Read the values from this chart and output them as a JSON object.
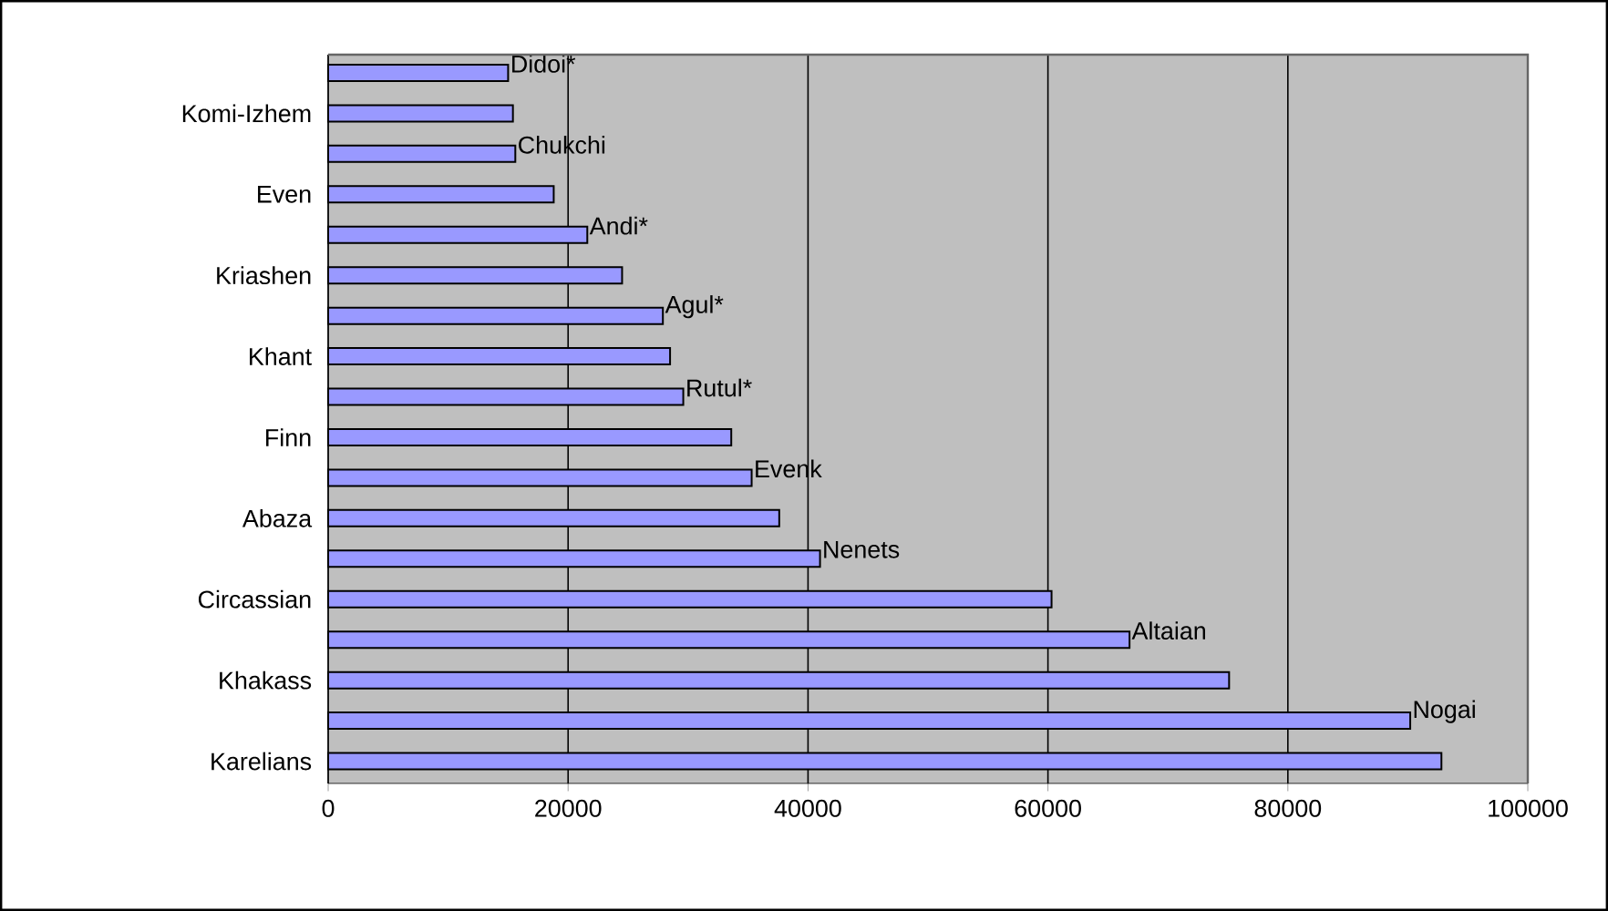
{
  "chart_data": {
    "type": "bar",
    "orientation": "horizontal",
    "categories": [
      "Didoi*",
      "Komi-Izhem",
      "Chukchi",
      "Even",
      "Andi*",
      "Kriashen",
      "Agul*",
      "Khant",
      "Rutul*",
      "Finn",
      "Evenk",
      "Abaza",
      "Nenets",
      "Circassian",
      "Altaian",
      "Khakass",
      "Nogai",
      "Karelians"
    ],
    "values": [
      15000,
      15400,
      15600,
      18800,
      21600,
      24500,
      27900,
      28500,
      29600,
      33600,
      35300,
      37600,
      41000,
      60300,
      66800,
      75100,
      90200,
      92800
    ],
    "color": "#9999ff",
    "xlim": [
      0,
      100000
    ],
    "xticks": [
      0,
      20000,
      40000,
      60000,
      80000,
      100000
    ],
    "grid": "x"
  }
}
